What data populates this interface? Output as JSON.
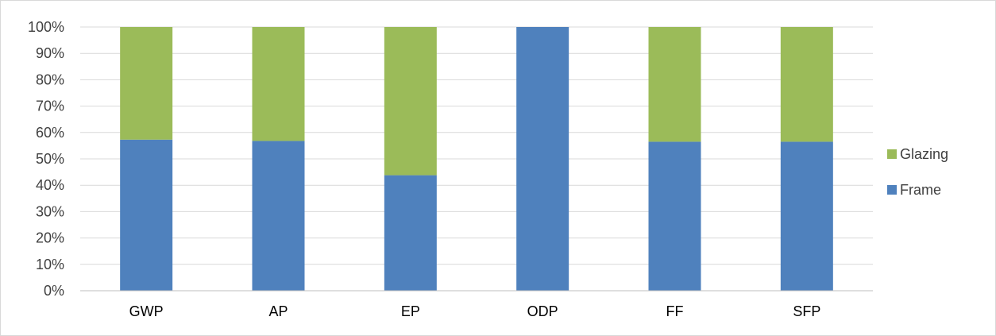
{
  "chart_data": {
    "type": "bar",
    "stacked": true,
    "percent_stacked": true,
    "categories": [
      "GWP",
      "AP",
      "EP",
      "ODP",
      "FF",
      "SFP"
    ],
    "series": [
      {
        "name": "Frame",
        "color": "#4f81bd",
        "values": [
          57.3,
          56.8,
          43.8,
          100,
          56.5,
          56.5
        ]
      },
      {
        "name": "Glazing",
        "color": "#9bbb59",
        "values": [
          42.7,
          43.2,
          56.2,
          0,
          43.5,
          43.5
        ]
      }
    ],
    "ylim": [
      0,
      100
    ],
    "yticks": [
      "0%",
      "10%",
      "20%",
      "30%",
      "40%",
      "50%",
      "60%",
      "70%",
      "80%",
      "90%",
      "100%"
    ],
    "grid": true,
    "legend_position": "right",
    "legend_order": [
      "Glazing",
      "Frame"
    ],
    "title": "",
    "xlabel": "",
    "ylabel": "",
    "colors": {
      "gridline": "#d9d9d9",
      "axis": "#bfbfbf"
    }
  }
}
